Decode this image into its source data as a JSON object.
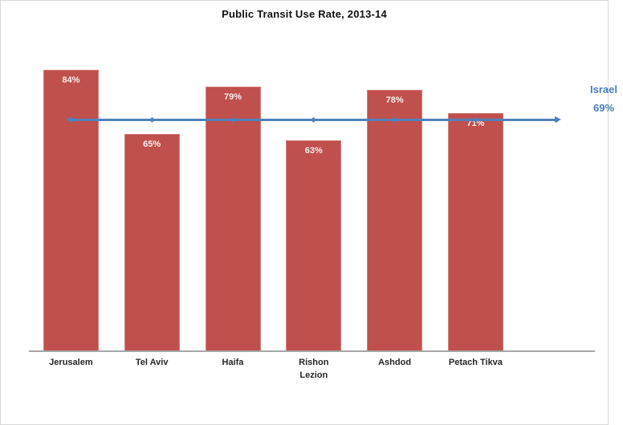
{
  "chart_data": {
    "type": "bar",
    "title": "Public Transit Use Rate, 2013-14",
    "categories": [
      "Jerusalem",
      "Tel Aviv",
      "Haifa",
      "Rishon Lezion",
      "Ashdod",
      "Petach Tikva"
    ],
    "values": [
      84,
      65,
      79,
      63,
      78,
      71
    ],
    "value_labels": [
      "84%",
      "65%",
      "79%",
      "63%",
      "78%",
      "71%"
    ],
    "reference_line": {
      "name": "Israel",
      "value": 69,
      "label_lines": [
        "Israel",
        "69%"
      ]
    },
    "xlabel": "",
    "ylabel": "",
    "ylim": [
      0,
      105
    ],
    "grid": false,
    "legend": "none",
    "data_labels_position": "inside-end"
  },
  "colors": {
    "bar": "#c0504d",
    "bar_label": "#f7efed",
    "line": "#4f81bd",
    "annotation": "#4a7ebb",
    "axis_line": "#a6a6a6",
    "category_label": "#262626",
    "title": "#111111",
    "background": "#ffffff"
  }
}
